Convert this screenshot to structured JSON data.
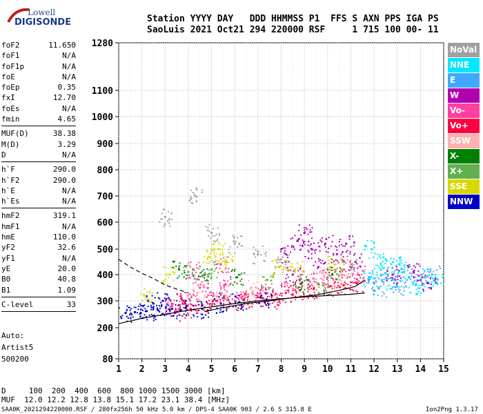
{
  "logo": {
    "line1": "Lowell",
    "line2": "DIGISONDE"
  },
  "header": {
    "line1": "Station YYYY DAY   DDD HHMMSS P1  FFS S AXN PPS IGA PS",
    "line2": "SaoLuis 2021 Oct21 294 220000 RSF     1 715 100 00- 11"
  },
  "params_group1": [
    {
      "label": "foF2",
      "value": "11.650"
    },
    {
      "label": "foF1",
      "value": "N/A"
    },
    {
      "label": "foF1p",
      "value": "N/A"
    },
    {
      "label": "foE",
      "value": "N/A"
    },
    {
      "label": "foEp",
      "value": "0.35"
    },
    {
      "label": "fxI",
      "value": "12.70"
    },
    {
      "label": "foEs",
      "value": "N/A"
    },
    {
      "label": "fmin",
      "value": "4.65"
    }
  ],
  "params_group2": [
    {
      "label": "MUF(D)",
      "value": "38.38"
    },
    {
      "label": "M(D)",
      "value": "3.29"
    },
    {
      "label": "D",
      "value": "N/A"
    }
  ],
  "params_group3": [
    {
      "label": "h`F",
      "value": "290.0"
    },
    {
      "label": "h`F2",
      "value": "290.0"
    },
    {
      "label": "h`E",
      "value": "N/A"
    },
    {
      "label": "h`Es",
      "value": "N/A"
    }
  ],
  "params_group4": [
    {
      "label": "hmF2",
      "value": "319.1"
    },
    {
      "label": "hmF1",
      "value": "N/A"
    },
    {
      "label": "hmE",
      "value": "110.0"
    },
    {
      "label": "yF2",
      "value": "32.6"
    },
    {
      "label": "yF1",
      "value": "N/A"
    },
    {
      "label": "yE",
      "value": "20.0"
    },
    {
      "label": "B0",
      "value": "40.8"
    },
    {
      "label": "B1",
      "value": "1.09"
    }
  ],
  "clevel": {
    "label": "C-level",
    "value": "33"
  },
  "auto": {
    "line1": "Auto:",
    "line2": "Artist5",
    "line3": "500200"
  },
  "legend": [
    {
      "label": "NoVal",
      "color": "#a0a0a0"
    },
    {
      "label": "NNE",
      "color": "#00e8ff"
    },
    {
      "label": "E",
      "color": "#40a8ff"
    },
    {
      "label": "W",
      "color": "#b000b0"
    },
    {
      "label": "Vo-",
      "color": "#ff40a0"
    },
    {
      "label": "Vo+",
      "color": "#ff0040"
    },
    {
      "label": "SSW",
      "color": "#ffb0b0"
    },
    {
      "label": "X-",
      "color": "#008000"
    },
    {
      "label": "X+",
      "color": "#60b050"
    },
    {
      "label": "SSE",
      "color": "#d8d800"
    },
    {
      "label": "NNW",
      "color": "#0000c8"
    }
  ],
  "bottom": {
    "line1": "D     100  200  400  600  800 1000 1500 3000 [km]",
    "line2": "MUF  12.0 12.2 12.8 13.8 15.1 17.2 23.1 38.4 [MHz]"
  },
  "footer": {
    "left": "SAA0K_2021294220000.RSF / 280fx256h 50 kHz 5.0 km / DPS-4 SAA0K 903 / 2.6 S 315.8 E",
    "right": "Ion2Png 1.3.17"
  },
  "chart_data": {
    "type": "scatter",
    "title": "",
    "xlabel": "",
    "ylabel": "",
    "xlim": [
      1,
      15
    ],
    "ylim": [
      80,
      1280
    ],
    "y_scale": "log-like",
    "x_ticks": [
      1,
      2,
      3,
      4,
      5,
      6,
      7,
      8,
      9,
      10,
      11,
      12,
      13,
      14,
      15
    ],
    "y_ticks": [
      80,
      200,
      300,
      400,
      500,
      600,
      700,
      800,
      900,
      1000,
      1100,
      1280
    ],
    "grid": true,
    "series": [
      {
        "name": "NNE",
        "color": "#00e8ff",
        "points": [
          [
            11.8,
            390
          ],
          [
            12.3,
            420
          ],
          [
            12.8,
            380
          ],
          [
            13.3,
            410
          ],
          [
            13.8,
            360
          ],
          [
            14.2,
            390
          ],
          [
            14.7,
            370
          ],
          [
            12.5,
            460
          ],
          [
            13.1,
            440
          ],
          [
            11.9,
            500
          ]
        ]
      },
      {
        "name": "E",
        "color": "#40a8ff",
        "points": [
          [
            12.0,
            370
          ],
          [
            12.6,
            400
          ],
          [
            13.5,
            390
          ],
          [
            14.0,
            380
          ],
          [
            14.5,
            400
          ],
          [
            13.0,
            355
          ],
          [
            12.2,
            350
          ]
        ]
      },
      {
        "name": "W",
        "color": "#b000b0",
        "points": [
          [
            8.2,
            480
          ],
          [
            8.7,
            530
          ],
          [
            9.0,
            560
          ],
          [
            9.3,
            500
          ],
          [
            9.9,
            520
          ],
          [
            10.4,
            480
          ],
          [
            10.8,
            520
          ],
          [
            11.2,
            450
          ],
          [
            8.5,
            400
          ],
          [
            9.6,
            430
          ],
          [
            14.3,
            370
          ],
          [
            13.7,
            410
          ],
          [
            12.8,
            400
          ]
        ]
      },
      {
        "name": "Vo-",
        "color": "#ff40a0",
        "points": [
          [
            3.3,
            280
          ],
          [
            3.9,
            300
          ],
          [
            4.5,
            350
          ],
          [
            5.1,
            320
          ],
          [
            5.6,
            360
          ],
          [
            6.3,
            310
          ],
          [
            7.1,
            330
          ],
          [
            7.7,
            300
          ],
          [
            8.3,
            340
          ],
          [
            9.1,
            380
          ],
          [
            10.0,
            390
          ],
          [
            10.7,
            420
          ],
          [
            11.3,
            400
          ],
          [
            4.2,
            420
          ],
          [
            5.4,
            440
          ]
        ]
      },
      {
        "name": "Vo+",
        "color": "#ff0040",
        "points": [
          [
            3.5,
            260
          ],
          [
            4.1,
            270
          ],
          [
            4.6,
            285
          ],
          [
            5.2,
            300
          ],
          [
            5.8,
            290
          ],
          [
            6.4,
            305
          ],
          [
            7.0,
            315
          ],
          [
            7.6,
            320
          ],
          [
            8.2,
            330
          ],
          [
            8.8,
            340
          ],
          [
            9.4,
            345
          ],
          [
            10.1,
            355
          ],
          [
            10.7,
            360
          ],
          [
            11.2,
            370
          ],
          [
            3.8,
            300
          ]
        ]
      },
      {
        "name": "SSW",
        "color": "#ffb0b0",
        "points": [
          [
            4.4,
            330
          ],
          [
            5.3,
            310
          ],
          [
            6.7,
            350
          ],
          [
            9.7,
            410
          ],
          [
            10.5,
            380
          ]
        ]
      },
      {
        "name": "X-",
        "color": "#008000",
        "points": [
          [
            3.6,
            420
          ],
          [
            4.7,
            400
          ],
          [
            6.1,
            390
          ],
          [
            8.9,
            370
          ],
          [
            10.2,
            400
          ]
        ]
      },
      {
        "name": "X+",
        "color": "#60b050",
        "points": [
          [
            4.0,
            410
          ],
          [
            5.0,
            420
          ],
          [
            7.4,
            380
          ],
          [
            9.8,
            360
          ]
        ]
      },
      {
        "name": "SSE",
        "color": "#d8d800",
        "points": [
          [
            4.9,
            470
          ],
          [
            5.3,
            500
          ],
          [
            5.6,
            450
          ],
          [
            7.9,
            430
          ],
          [
            8.6,
            420
          ],
          [
            10.3,
            440
          ],
          [
            2.1,
            320
          ],
          [
            3.2,
            400
          ]
        ]
      },
      {
        "name": "NNW",
        "color": "#0000c8",
        "points": [
          [
            1.3,
            255
          ],
          [
            1.7,
            258
          ],
          [
            2.2,
            262
          ],
          [
            2.7,
            265
          ],
          [
            3.3,
            270
          ],
          [
            3.9,
            275
          ],
          [
            4.6,
            270
          ],
          [
            5.4,
            290
          ],
          [
            6.2,
            295
          ],
          [
            7.3,
            300
          ],
          [
            2.5,
            290
          ],
          [
            2.9,
            300
          ]
        ]
      },
      {
        "name": "NoVal",
        "color": "#a0a0a0",
        "points": [
          [
            5.0,
            560
          ],
          [
            6.0,
            520
          ],
          [
            7.0,
            480
          ],
          [
            8.0,
            460
          ],
          [
            11.0,
            440
          ],
          [
            3.0,
            620
          ],
          [
            4.3,
            700
          ]
        ]
      }
    ],
    "trace_lines": [
      {
        "name": "virtual-height",
        "style": "dashed",
        "points": [
          [
            1,
            460
          ],
          [
            1.5,
            430
          ],
          [
            2.0,
            405
          ],
          [
            2.5,
            385
          ],
          [
            3.0,
            360
          ],
          [
            3.5,
            345
          ],
          [
            4.0,
            330
          ]
        ]
      },
      {
        "name": "profile",
        "style": "solid",
        "points": [
          [
            1,
            215
          ],
          [
            2,
            235
          ],
          [
            3,
            250
          ],
          [
            4,
            265
          ],
          [
            5,
            278
          ],
          [
            6,
            290
          ],
          [
            7,
            300
          ],
          [
            8,
            308
          ],
          [
            9,
            315
          ],
          [
            10,
            320
          ],
          [
            11,
            325
          ],
          [
            11.6,
            330
          ]
        ]
      },
      {
        "name": "trace",
        "style": "solid",
        "points": [
          [
            4.7,
            260
          ],
          [
            5.5,
            275
          ],
          [
            6.5,
            290
          ],
          [
            7.5,
            300
          ],
          [
            8.5,
            312
          ],
          [
            9.5,
            322
          ],
          [
            10.5,
            340
          ],
          [
            11.2,
            355
          ],
          [
            11.6,
            380
          ]
        ]
      }
    ]
  }
}
